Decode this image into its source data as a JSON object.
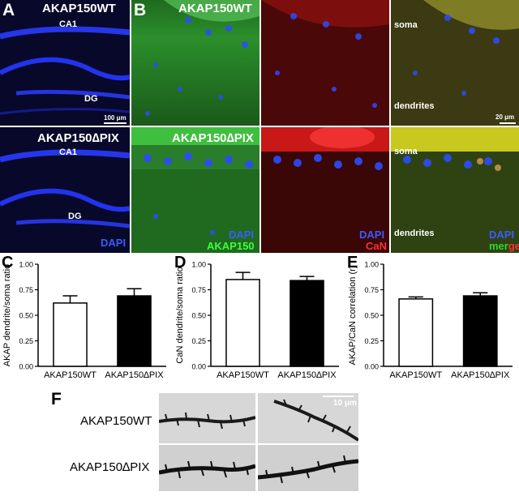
{
  "panels": {
    "A": {
      "letter": "A",
      "wt_title": "AKAP150WT",
      "dpix_title": "AKAP150∆PIX",
      "ca1": "CA1",
      "dg": "DG",
      "scale": "100 μm",
      "stain": "DAPI"
    },
    "B": {
      "letter": "B",
      "wt_title": "AKAP150WT",
      "dpix_title": "AKAP150∆PIX",
      "soma": "soma",
      "dendrites": "dendrites",
      "scale": "20 μm",
      "col1_stain_a": "DAPI",
      "col1_stain_b": "AKAP150",
      "col2_stain_a": "DAPI",
      "col2_stain_b": "CaN",
      "col3_stain_a": "DAPI",
      "col3_stain_b1": "mer",
      "col3_stain_b2": "ge"
    },
    "F": {
      "letter": "F",
      "row1": "AKAP150WT",
      "row2": "AKAP150∆PIX",
      "scale": "10 μm"
    }
  },
  "colors": {
    "dapi": "#3a5cff",
    "akap": "#3cff3c",
    "can": "#ff3030",
    "merge_g": "#2fd62f"
  },
  "chart_data": [
    {
      "letter": "C",
      "type": "bar",
      "categories": [
        "AKAP150WT",
        "AKAP150∆PIX"
      ],
      "values": [
        0.62,
        0.69
      ],
      "errors": [
        0.07,
        0.07
      ],
      "fills": [
        "#ffffff",
        "#000000"
      ],
      "ylabel": "AKAP dendrite/soma ratio",
      "ylim": [
        0,
        1.0
      ],
      "yticks": [
        "0.00",
        "0.25",
        "0.50",
        "0.75",
        "1.00"
      ]
    },
    {
      "letter": "D",
      "type": "bar",
      "categories": [
        "AKAP150WT",
        "AKAP150∆PIX"
      ],
      "values": [
        0.85,
        0.84
      ],
      "errors": [
        0.07,
        0.04
      ],
      "fills": [
        "#ffffff",
        "#000000"
      ],
      "ylabel": "CaN dendrite/soma ratio",
      "ylim": [
        0,
        1.0
      ],
      "yticks": [
        "0.00",
        "0.25",
        "0.50",
        "0.75",
        "1.00"
      ]
    },
    {
      "letter": "E",
      "type": "bar",
      "categories": [
        "AKAP150WT",
        "AKAP150∆PIX"
      ],
      "values": [
        0.66,
        0.69
      ],
      "errors": [
        0.02,
        0.03
      ],
      "fills": [
        "#ffffff",
        "#000000"
      ],
      "ylabel": "AKAP/CaN correlation (r)",
      "ylim": [
        0,
        1.0
      ],
      "yticks": [
        "0.00",
        "0.25",
        "0.50",
        "0.75",
        "1.00"
      ]
    }
  ]
}
